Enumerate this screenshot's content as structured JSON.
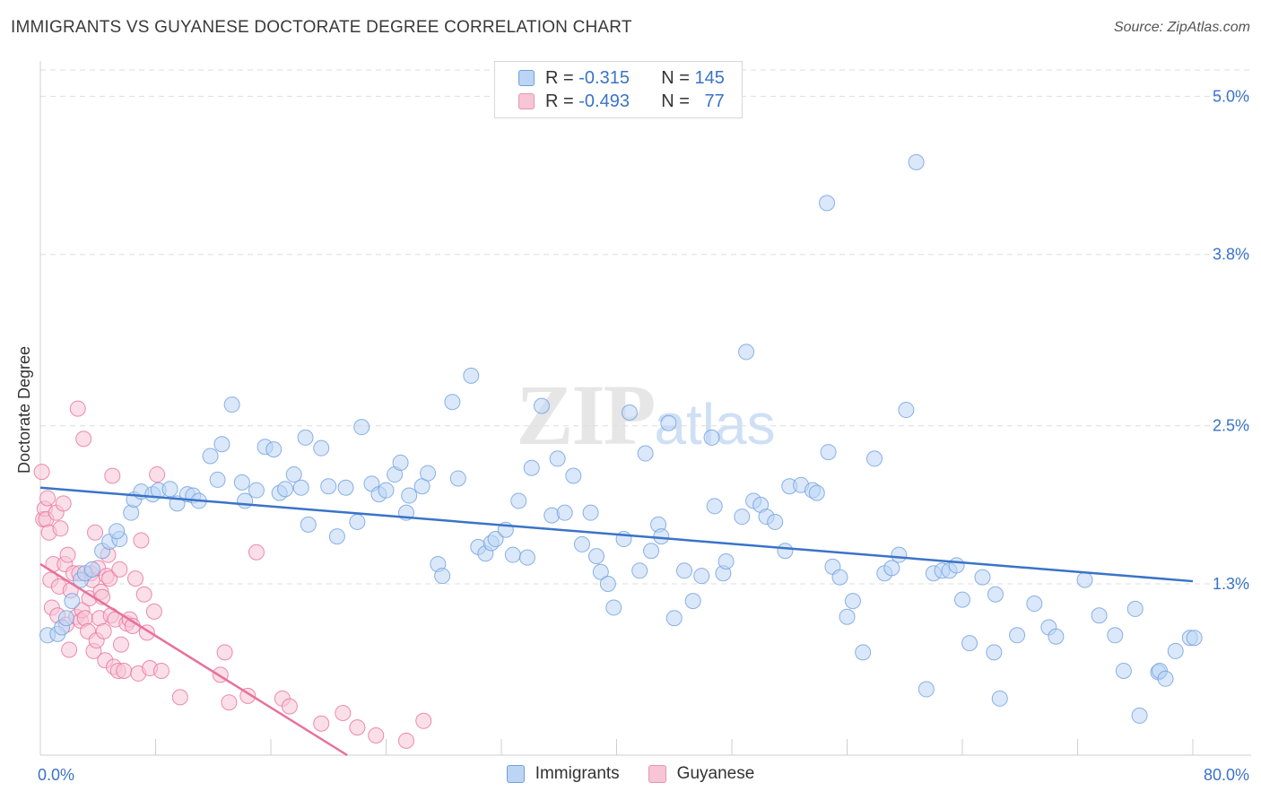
{
  "title": "IMMIGRANTS VS GUYANESE DOCTORATE DEGREE CORRELATION CHART",
  "source": "Source: ZipAtlas.com",
  "watermark": "ZIPatlas",
  "colors": {
    "blue": "#3a73c8",
    "blue_fill": "#bcd5f5",
    "pink": "#e8719b",
    "pink_fill": "#f7c5d6",
    "grid": "#dedede",
    "tick_label": "#3a73c8"
  },
  "legend": {
    "rows": [
      {
        "r_label": "R = ",
        "r_value": "-0.315",
        "n_label": "N = ",
        "n_value": "145"
      },
      {
        "r_label": "R = ",
        "r_value": "-0.493",
        "n_label": "N = ",
        "n_value": "77"
      }
    ]
  },
  "bottom_legend": [
    "Immigrants",
    "Guyanese"
  ],
  "chart_data": {
    "type": "scatter",
    "title": "IMMIGRANTS VS GUYANESE DOCTORATE DEGREE CORRELATION CHART",
    "xlabel": "",
    "ylabel": "Doctorate Degree",
    "xlim": [
      0,
      80
    ],
    "ylim": [
      0.0,
      5.2
    ],
    "x_tick_labels": [
      "0.0%",
      "80.0%"
    ],
    "y_ticks": [
      1.3,
      2.5,
      3.8,
      5.0
    ],
    "y_tick_labels": [
      "1.3%",
      "2.5%",
      "3.8%",
      "5.0%"
    ],
    "series": [
      {
        "name": "Immigrants",
        "r": -0.315,
        "n": 145,
        "trend": {
          "x": [
            0,
            80
          ],
          "y": [
            2.03,
            1.32
          ]
        },
        "points": [
          [
            0.5,
            0.91
          ],
          [
            1.2,
            0.92
          ],
          [
            1.5,
            0.97
          ],
          [
            1.8,
            1.04
          ],
          [
            2.2,
            1.17
          ],
          [
            2.8,
            1.33
          ],
          [
            3.1,
            1.38
          ],
          [
            3.6,
            1.41
          ],
          [
            4.3,
            1.55
          ],
          [
            4.8,
            1.62
          ],
          [
            5.5,
            1.64
          ],
          [
            5.3,
            1.7
          ],
          [
            6.3,
            1.84
          ],
          [
            6.5,
            1.94
          ],
          [
            7.0,
            2.0
          ],
          [
            7.8,
            1.98
          ],
          [
            8.2,
            2.01
          ],
          [
            9.0,
            2.02
          ],
          [
            9.5,
            1.91
          ],
          [
            10.2,
            1.98
          ],
          [
            10.6,
            1.97
          ],
          [
            11.0,
            1.93
          ],
          [
            11.8,
            2.27
          ],
          [
            12.3,
            2.09
          ],
          [
            12.6,
            2.36
          ],
          [
            13.3,
            2.66
          ],
          [
            14.0,
            2.07
          ],
          [
            14.2,
            1.93
          ],
          [
            15.0,
            2.01
          ],
          [
            15.6,
            2.34
          ],
          [
            16.2,
            2.32
          ],
          [
            16.6,
            1.99
          ],
          [
            17.0,
            2.02
          ],
          [
            17.6,
            2.13
          ],
          [
            18.1,
            2.03
          ],
          [
            18.6,
            1.75
          ],
          [
            18.4,
            2.41
          ],
          [
            19.5,
            2.33
          ],
          [
            20.0,
            2.04
          ],
          [
            20.6,
            1.66
          ],
          [
            21.2,
            2.03
          ],
          [
            22.0,
            1.77
          ],
          [
            22.3,
            2.49
          ],
          [
            23.0,
            2.06
          ],
          [
            23.5,
            1.98
          ],
          [
            24.0,
            2.01
          ],
          [
            24.6,
            2.13
          ],
          [
            25.0,
            2.22
          ],
          [
            25.6,
            1.97
          ],
          [
            25.4,
            1.84
          ],
          [
            26.5,
            2.04
          ],
          [
            26.9,
            2.14
          ],
          [
            27.6,
            1.45
          ],
          [
            27.9,
            1.36
          ],
          [
            28.6,
            2.68
          ],
          [
            29.0,
            2.1
          ],
          [
            29.9,
            2.88
          ],
          [
            30.4,
            1.58
          ],
          [
            30.9,
            1.53
          ],
          [
            31.3,
            1.61
          ],
          [
            31.6,
            1.64
          ],
          [
            32.3,
            1.71
          ],
          [
            32.8,
            1.52
          ],
          [
            33.2,
            1.93
          ],
          [
            33.8,
            1.5
          ],
          [
            34.1,
            2.18
          ],
          [
            34.8,
            2.65
          ],
          [
            35.5,
            1.82
          ],
          [
            35.9,
            2.25
          ],
          [
            36.4,
            1.84
          ],
          [
            37.0,
            2.12
          ],
          [
            37.6,
            1.6
          ],
          [
            38.2,
            1.84
          ],
          [
            38.6,
            1.51
          ],
          [
            38.9,
            1.39
          ],
          [
            39.4,
            1.3
          ],
          [
            39.8,
            1.12
          ],
          [
            40.5,
            1.64
          ],
          [
            40.9,
            2.6
          ],
          [
            41.6,
            1.4
          ],
          [
            42.0,
            2.29
          ],
          [
            42.4,
            1.55
          ],
          [
            42.9,
            1.75
          ],
          [
            43.1,
            1.66
          ],
          [
            43.6,
            2.52
          ],
          [
            44.0,
            1.04
          ],
          [
            44.7,
            1.4
          ],
          [
            45.3,
            1.17
          ],
          [
            45.9,
            1.36
          ],
          [
            46.6,
            2.41
          ],
          [
            46.8,
            1.89
          ],
          [
            47.4,
            1.38
          ],
          [
            47.6,
            1.47
          ],
          [
            48.7,
            1.81
          ],
          [
            49.0,
            3.06
          ],
          [
            49.5,
            1.93
          ],
          [
            50.0,
            1.9
          ],
          [
            50.4,
            1.81
          ],
          [
            51.0,
            1.77
          ],
          [
            51.7,
            1.55
          ],
          [
            52.0,
            2.04
          ],
          [
            52.8,
            2.05
          ],
          [
            53.6,
            2.01
          ],
          [
            53.9,
            1.99
          ],
          [
            54.6,
            4.19
          ],
          [
            54.7,
            2.3
          ],
          [
            55.0,
            1.43
          ],
          [
            55.5,
            1.35
          ],
          [
            56.0,
            1.05
          ],
          [
            56.4,
            1.17
          ],
          [
            57.1,
            0.78
          ],
          [
            57.9,
            2.25
          ],
          [
            58.6,
            1.38
          ],
          [
            59.1,
            1.42
          ],
          [
            59.6,
            1.52
          ],
          [
            60.1,
            2.62
          ],
          [
            60.8,
            4.5
          ],
          [
            61.5,
            0.5
          ],
          [
            62.0,
            1.38
          ],
          [
            62.6,
            1.4
          ],
          [
            63.1,
            1.4
          ],
          [
            63.6,
            1.44
          ],
          [
            64.0,
            1.18
          ],
          [
            64.5,
            0.85
          ],
          [
            65.4,
            1.35
          ],
          [
            66.3,
            1.22
          ],
          [
            66.2,
            0.78
          ],
          [
            66.6,
            0.43
          ],
          [
            67.8,
            0.91
          ],
          [
            69.0,
            1.15
          ],
          [
            70.0,
            0.97
          ],
          [
            70.5,
            0.9
          ],
          [
            72.5,
            1.33
          ],
          [
            73.5,
            1.06
          ],
          [
            74.6,
            0.91
          ],
          [
            75.2,
            0.64
          ],
          [
            76.0,
            1.11
          ],
          [
            76.3,
            0.3
          ],
          [
            77.6,
            0.63
          ],
          [
            77.7,
            0.64
          ],
          [
            78.1,
            0.58
          ],
          [
            78.8,
            0.79
          ],
          [
            79.8,
            0.89
          ],
          [
            80.1,
            0.89
          ]
        ]
      },
      {
        "name": "Guyanese",
        "r": -0.493,
        "n": 77,
        "trend": {
          "x": [
            0,
            21.3
          ],
          "y": [
            1.45,
            0.0
          ]
        },
        "points": [
          [
            0.1,
            2.15
          ],
          [
            0.2,
            1.79
          ],
          [
            0.3,
            1.87
          ],
          [
            0.4,
            1.79
          ],
          [
            0.5,
            1.95
          ],
          [
            0.6,
            1.69
          ],
          [
            0.7,
            1.33
          ],
          [
            0.8,
            1.12
          ],
          [
            0.9,
            1.45
          ],
          [
            1.1,
            1.84
          ],
          [
            1.2,
            1.06
          ],
          [
            1.3,
            1.28
          ],
          [
            1.4,
            1.72
          ],
          [
            1.6,
            1.91
          ],
          [
            1.7,
            1.45
          ],
          [
            1.8,
            0.99
          ],
          [
            1.9,
            1.52
          ],
          [
            2.0,
            0.8
          ],
          [
            2.1,
            1.25
          ],
          [
            2.3,
            1.38
          ],
          [
            2.5,
            1.05
          ],
          [
            2.6,
            2.63
          ],
          [
            2.7,
            1.38
          ],
          [
            2.8,
            1.02
          ],
          [
            2.9,
            1.1
          ],
          [
            3.0,
            2.4
          ],
          [
            3.1,
            1.04
          ],
          [
            3.3,
            0.94
          ],
          [
            3.4,
            1.19
          ],
          [
            3.5,
            1.38
          ],
          [
            3.6,
            1.33
          ],
          [
            3.7,
            0.79
          ],
          [
            3.8,
            1.69
          ],
          [
            3.9,
            0.87
          ],
          [
            4.0,
            1.42
          ],
          [
            4.1,
            1.04
          ],
          [
            4.2,
            1.24
          ],
          [
            4.3,
            1.2
          ],
          [
            4.4,
            0.94
          ],
          [
            4.5,
            0.72
          ],
          [
            4.6,
            1.36
          ],
          [
            4.7,
            1.52
          ],
          [
            4.8,
            1.34
          ],
          [
            4.9,
            1.06
          ],
          [
            5.0,
            2.12
          ],
          [
            5.1,
            0.67
          ],
          [
            5.2,
            1.03
          ],
          [
            5.4,
            0.64
          ],
          [
            5.5,
            1.41
          ],
          [
            5.6,
            0.84
          ],
          [
            5.8,
            0.64
          ],
          [
            6.0,
            1.0
          ],
          [
            6.2,
            1.03
          ],
          [
            6.4,
            0.98
          ],
          [
            6.6,
            1.34
          ],
          [
            6.8,
            0.62
          ],
          [
            7.0,
            1.63
          ],
          [
            7.2,
            1.22
          ],
          [
            7.4,
            0.93
          ],
          [
            7.6,
            0.66
          ],
          [
            7.9,
            1.09
          ],
          [
            8.1,
            2.13
          ],
          [
            8.4,
            0.64
          ],
          [
            9.7,
            0.44
          ],
          [
            12.5,
            0.61
          ],
          [
            12.8,
            0.78
          ],
          [
            13.1,
            0.4
          ],
          [
            14.4,
            0.45
          ],
          [
            15.0,
            1.54
          ],
          [
            16.8,
            0.43
          ],
          [
            17.3,
            0.37
          ],
          [
            19.5,
            0.24
          ],
          [
            21.0,
            0.32
          ],
          [
            22.0,
            0.21
          ],
          [
            23.3,
            0.15
          ],
          [
            25.4,
            0.11
          ],
          [
            26.6,
            0.26
          ]
        ]
      }
    ]
  }
}
